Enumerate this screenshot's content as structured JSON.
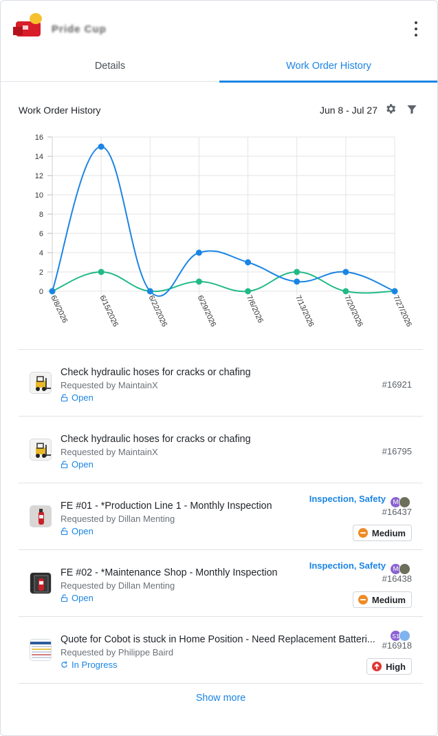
{
  "header": {
    "company_name": "Pride Cup",
    "logo": "company-logo",
    "menu_icon": "kebab-menu-icon"
  },
  "tabs": [
    {
      "label": "Details",
      "active": false
    },
    {
      "label": "Work Order History",
      "active": true
    }
  ],
  "chart_header": {
    "title": "Work Order History",
    "date_range": "Jun 8 - Jul 27",
    "settings_icon": "gear-icon",
    "filter_icon": "filter-icon"
  },
  "colors": {
    "accent": "#1a84e5",
    "series_blue": "#1a84e5",
    "series_green": "#20b987",
    "priority_medium": "#f08a24",
    "priority_high": "#e03535"
  },
  "chart_data": {
    "type": "line",
    "categories": [
      "6/8/2026",
      "6/15/2026",
      "6/22/2026",
      "6/29/2026",
      "7/6/2026",
      "7/13/2026",
      "7/20/2026",
      "7/27/2026"
    ],
    "series": [
      {
        "values": [
          0,
          15,
          0,
          4,
          3,
          1,
          2,
          0
        ],
        "color": "#1a84e5"
      },
      {
        "values": [
          0,
          2,
          0,
          1,
          0,
          2,
          0,
          0
        ],
        "color": "#20b987"
      }
    ],
    "y_ticks": [
      "0",
      "2",
      "4",
      "6",
      "8",
      "10",
      "12",
      "14",
      "16"
    ],
    "ylim": [
      0,
      16
    ],
    "grid": true,
    "smooth": true,
    "title": "",
    "xlabel": "",
    "ylabel": ""
  },
  "work_orders": [
    {
      "title": "Check hydraulic hoses for cracks or chafing",
      "requested_by": "Requested by MaintainX",
      "status": "Open",
      "status_icon": "unlock-icon",
      "number": "#16921",
      "thumb": "forklift-thumbnail"
    },
    {
      "title": "Check hydraulic hoses for cracks or chafing",
      "requested_by": "Requested by MaintainX",
      "status": "Open",
      "status_icon": "unlock-icon",
      "number": "#16795",
      "thumb": "forklift-thumbnail"
    },
    {
      "title": "FE #01 - *Production Line 1 - Monthly Inspection",
      "requested_by": "Requested by Dillan Menting",
      "status": "Open",
      "status_icon": "unlock-icon",
      "number": "#16437",
      "categories": "Inspection, Safety",
      "avatar_1": "M",
      "priority": "Medium",
      "thumb": "fire-extinguisher-thumbnail"
    },
    {
      "title": "FE #02 - *Maintenance Shop - Monthly Inspection",
      "requested_by": "Requested by Dillan Menting",
      "status": "Open",
      "status_icon": "unlock-icon",
      "number": "#16438",
      "categories": "Inspection, Safety",
      "avatar_1": "M",
      "priority": "Medium",
      "thumb": "fire-extinguisher-thumbnail"
    },
    {
      "title": "Quote for Cobot is stuck in Home Position - Need Replacement Batteri...",
      "requested_by": "Requested by Philippe Baird",
      "status": "In Progress",
      "status_icon": "refresh-icon",
      "number": "#16918",
      "avatar_1": "S1",
      "priority": "High",
      "thumb": "spreadsheet-thumbnail"
    }
  ],
  "show_more": "Show more"
}
